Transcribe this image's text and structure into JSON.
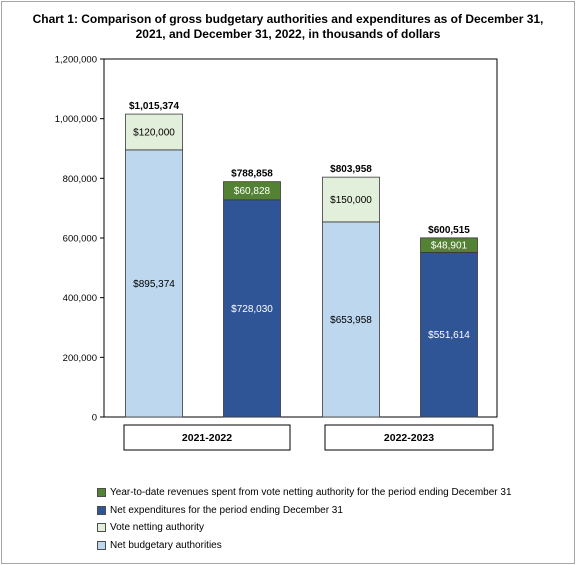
{
  "chart_data": {
    "type": "bar",
    "stacked": true,
    "title_lines": [
      "Chart 1: Comparison of gross budgetary authorities and expenditures as of December 31,",
      "2021, and December 31, 2022, in thousands of dollars"
    ],
    "ylim": [
      0,
      1200000
    ],
    "yticks": [
      0,
      200000,
      400000,
      600000,
      800000,
      1000000,
      1200000
    ],
    "ytick_labels": [
      "0",
      "200,000",
      "400,000",
      "600,000",
      "800,000",
      "1,000,000",
      "1,200,000"
    ],
    "groups": [
      "2021-2022",
      "2022-2023"
    ],
    "bars": [
      {
        "group": "2021-2022",
        "total_label": "$1,015,374",
        "segments": [
          {
            "series": "Net budgetary authorities",
            "value": 895374,
            "label": "$895,374"
          },
          {
            "series": "Vote netting authority",
            "value": 120000,
            "label": "$120,000"
          }
        ]
      },
      {
        "group": "2021-2022",
        "total_label": "$788,858",
        "segments": [
          {
            "series": "Net expenditures for the period ending December 31",
            "value": 728030,
            "label": "$728,030"
          },
          {
            "series": "Year-to-date revenues spent from vote netting authority for the period ending December 31",
            "value": 60828,
            "label": "$60,828"
          }
        ]
      },
      {
        "group": "2022-2023",
        "total_label": "$803,958",
        "segments": [
          {
            "series": "Net budgetary authorities",
            "value": 653958,
            "label": "$653,958"
          },
          {
            "series": "Vote netting authority",
            "value": 150000,
            "label": "$150,000"
          }
        ]
      },
      {
        "group": "2022-2023",
        "total_label": "$600,515",
        "segments": [
          {
            "series": "Net expenditures for the period ending December 31",
            "value": 551614,
            "label": "$551,614"
          },
          {
            "series": "Year-to-date revenues spent from vote netting authority for the period ending December 31",
            "value": 48901,
            "label": "$48,901"
          }
        ]
      }
    ],
    "series": [
      {
        "name": "Year-to-date revenues spent from vote netting authority for the period ending December 31",
        "color": "#548235"
      },
      {
        "name": "Net expenditures for the period ending December 31",
        "color": "#2f5597"
      },
      {
        "name": "Vote netting authority",
        "color": "#e2efda"
      },
      {
        "name": "Net budgetary authorities",
        "color": "#bdd7ee"
      }
    ],
    "dark_label_color": "#ffffff",
    "light_label_color": "#000000",
    "legend_position": "bottom-left",
    "grid": false
  }
}
